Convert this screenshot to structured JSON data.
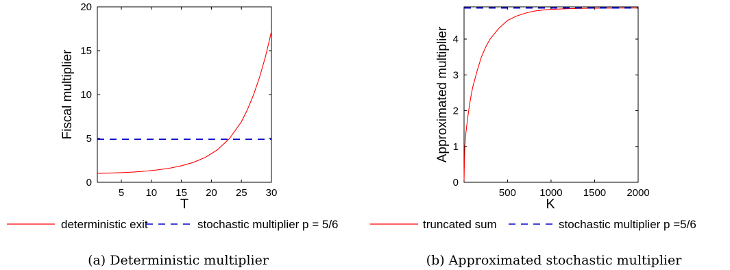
{
  "chart_data": [
    {
      "type": "line",
      "xlabel": "T",
      "ylabel": "Fiscal multiplier",
      "xlim": [
        1,
        30
      ],
      "ylim": [
        0,
        20
      ],
      "xticks": [
        5,
        10,
        15,
        20,
        25,
        30
      ],
      "yticks": [
        0,
        5,
        10,
        15,
        20
      ],
      "series": [
        {
          "name": "deterministic exit",
          "color": "#ff0000",
          "style": "solid",
          "x": [
            1,
            3,
            5,
            7,
            9,
            11,
            13,
            15,
            17,
            19,
            21,
            23,
            25,
            26,
            27,
            28,
            29,
            30
          ],
          "y": [
            1.02,
            1.05,
            1.1,
            1.17,
            1.27,
            1.41,
            1.6,
            1.88,
            2.27,
            2.84,
            3.7,
            4.98,
            6.9,
            8.28,
            9.94,
            11.93,
            14.31,
            17.2
          ]
        },
        {
          "name": "stochastic multiplier p = 5/6",
          "color": "#0000cc",
          "style": "dashed",
          "x": [
            1,
            30
          ],
          "y": [
            4.9,
            4.9
          ]
        }
      ],
      "legend": "bottom",
      "caption": "(a) Deterministic multiplier"
    },
    {
      "type": "line",
      "xlabel": "K",
      "ylabel": "Approximated multiplier",
      "xlim": [
        1,
        2000
      ],
      "ylim": [
        0,
        4.9
      ],
      "xticks": [
        500,
        1000,
        1500,
        2000
      ],
      "yticks": [
        0,
        1,
        2,
        3,
        4
      ],
      "series": [
        {
          "name": "truncated sum",
          "color": "#ff0000",
          "style": "solid",
          "x": [
            1,
            5,
            10,
            20,
            40,
            60,
            80,
            100,
            150,
            200,
            250,
            300,
            400,
            500,
            600,
            700,
            800,
            900,
            1000,
            1200,
            1400,
            1600,
            1800,
            2000
          ],
          "y": [
            0.05,
            0.55,
            1.0,
            1.33,
            1.75,
            2.1,
            2.4,
            2.65,
            3.1,
            3.5,
            3.78,
            4.0,
            4.3,
            4.52,
            4.64,
            4.72,
            4.78,
            4.81,
            4.83,
            4.85,
            4.86,
            4.865,
            4.867,
            4.868
          ]
        },
        {
          "name": "stochastic multiplier p =5/6",
          "color": "#0000cc",
          "style": "dashed",
          "x": [
            1,
            2000
          ],
          "y": [
            4.87,
            4.87
          ]
        }
      ],
      "legend": "bottom",
      "caption": "(b) Approximated stochastic multiplier"
    }
  ]
}
